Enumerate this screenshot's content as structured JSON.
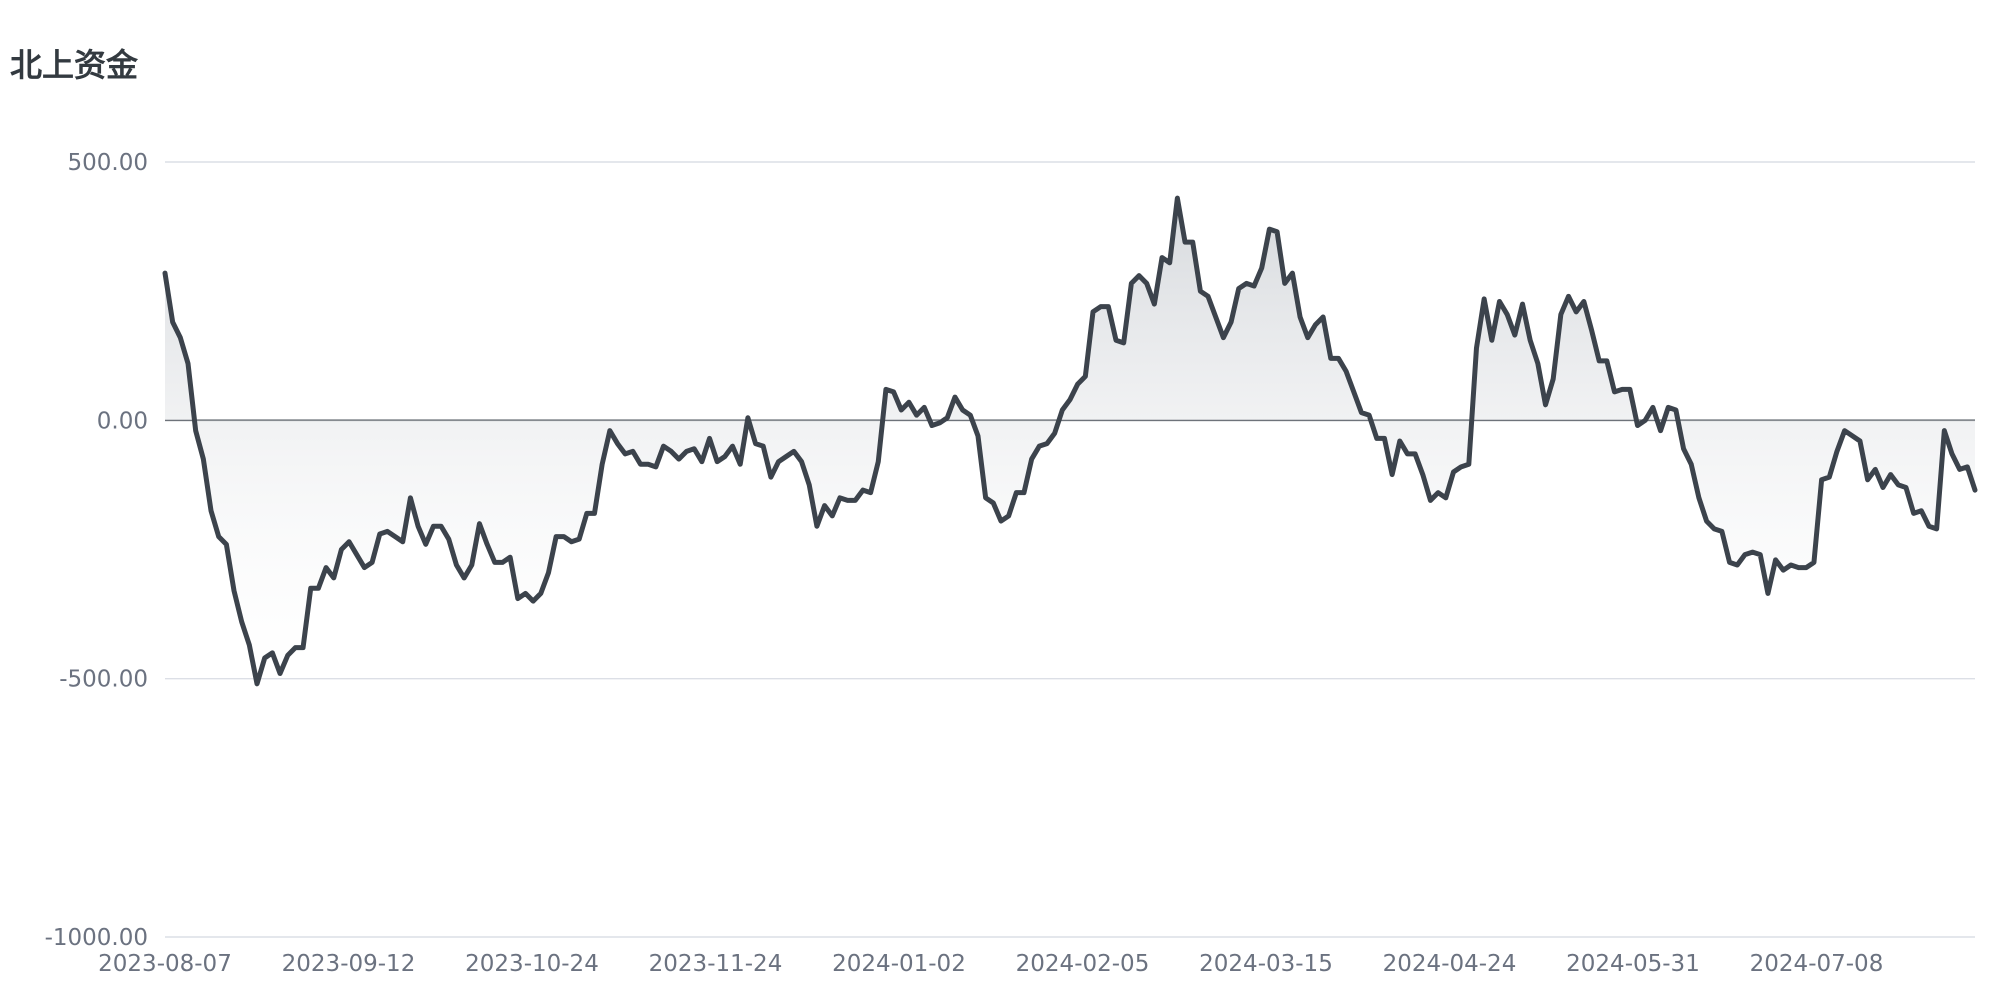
{
  "chart_data": {
    "type": "area",
    "title": "北上资金",
    "xlabel": "",
    "ylabel": "",
    "ylim": [
      -1000,
      500
    ],
    "yticks": [
      "500.00",
      "0.00",
      "-500.00",
      "-1000.00"
    ],
    "ytick_values": [
      500,
      0,
      -500,
      -1000
    ],
    "xticks": [
      "2023-08-07",
      "2023-09-12",
      "2023-10-24",
      "2023-11-24",
      "2024-01-02",
      "2024-02-05",
      "2024-03-15",
      "2024-04-24",
      "2024-05-31",
      "2024-07-08"
    ],
    "grid": true,
    "legend": "none",
    "colors": {
      "line": "#3c434c",
      "fill_top": "#d4d7db",
      "fill_bottom": "#ffffff"
    },
    "series": [
      {
        "values": [
          285,
          190,
          160,
          110,
          -20,
          -75,
          -175,
          -225,
          -240,
          -330,
          -390,
          -435,
          -510,
          -460,
          -450,
          -490,
          -455,
          -440,
          -440,
          -325,
          -325,
          -285,
          -305,
          -250,
          -235,
          -260,
          -285,
          -275,
          -220,
          -215,
          -225,
          -235,
          -150,
          -205,
          -240,
          -205,
          -205,
          -230,
          -280,
          -305,
          -280,
          -200,
          -240,
          -275,
          -275,
          -265,
          -345,
          -335,
          -350,
          -335,
          -295,
          -225,
          -225,
          -235,
          -230,
          -180,
          -180,
          -85,
          -20,
          -45,
          -65,
          -60,
          -85,
          -85,
          -90,
          -50,
          -60,
          -75,
          -60,
          -55,
          -80,
          -35,
          -80,
          -70,
          -50,
          -85,
          5,
          -45,
          -50,
          -110,
          -80,
          -70,
          -60,
          -80,
          -125,
          -205,
          -165,
          -185,
          -150,
          -155,
          -155,
          -135,
          -140,
          -80,
          60,
          55,
          20,
          35,
          10,
          25,
          -10,
          -5,
          5,
          45,
          20,
          10,
          -30,
          -150,
          -160,
          -195,
          -185,
          -140,
          -140,
          -75,
          -50,
          -45,
          -25,
          20,
          40,
          70,
          85,
          210,
          220,
          220,
          155,
          150,
          265,
          280,
          265,
          225,
          315,
          305,
          430,
          345,
          345,
          250,
          240,
          200,
          160,
          190,
          255,
          265,
          260,
          295,
          370,
          365,
          265,
          285,
          200,
          160,
          185,
          200,
          120,
          120,
          95,
          55,
          15,
          10,
          -35,
          -35,
          -105,
          -40,
          -65,
          -65,
          -105,
          -155,
          -140,
          -150,
          -100,
          -90,
          -85,
          140,
          235,
          155,
          230,
          205,
          165,
          225,
          155,
          110,
          30,
          80,
          205,
          240,
          210,
          230,
          175,
          115,
          115,
          55,
          60,
          60,
          -10,
          0,
          25,
          -20,
          25,
          20,
          -55,
          -85,
          -150,
          -195,
          -210,
          -215,
          -275,
          -280,
          -260,
          -255,
          -260,
          -335,
          -270,
          -290,
          -280,
          -285,
          -285,
          -275,
          -115,
          -110,
          -60,
          -20,
          -30,
          -40,
          -115,
          -95,
          -130,
          -105,
          -125,
          -130,
          -180,
          -175,
          -205,
          -210,
          -20,
          -65,
          -95,
          -90,
          -135
        ]
      }
    ]
  }
}
